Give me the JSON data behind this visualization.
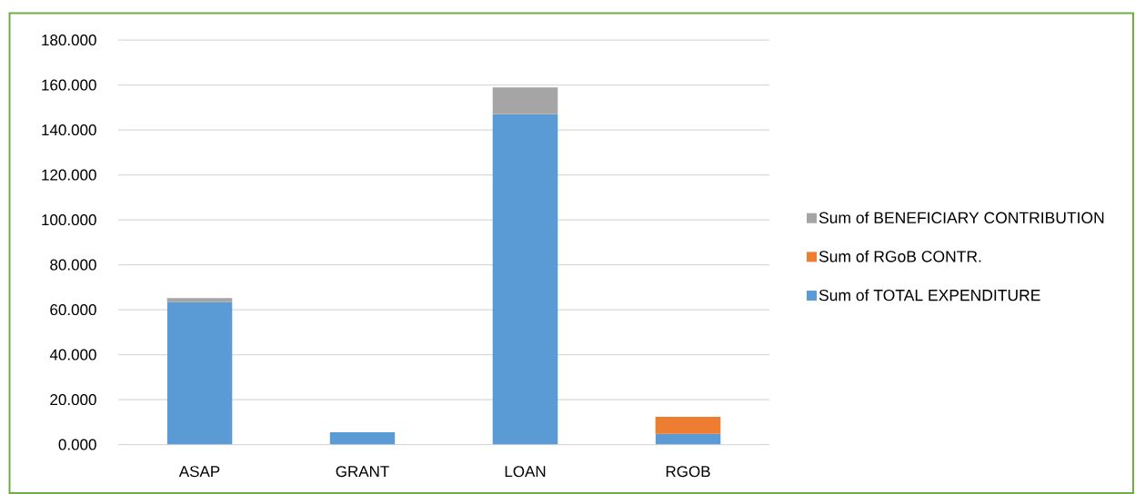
{
  "chart_data": {
    "type": "bar",
    "stacked": true,
    "categories": [
      "ASAP",
      "GRANT",
      "LOAN",
      "RGOB"
    ],
    "series": [
      {
        "name": "Sum of TOTAL EXPENDITURE",
        "color": "#5b9bd5",
        "values": [
          63.4,
          5.5,
          147,
          4.8
        ]
      },
      {
        "name": "Sum of RGoB CONTR.",
        "color": "#ed7d31",
        "values": [
          null,
          null,
          null,
          7.6
        ]
      },
      {
        "name": "Sum of BENEFICIARY CONTRIBUTION",
        "color": "#a5a5a5",
        "values": [
          1.8,
          null,
          11.9,
          null
        ]
      }
    ],
    "ylim": [
      0,
      180
    ],
    "yticks": [
      {
        "value": 0,
        "label": "0.000"
      },
      {
        "value": 20,
        "label": "20.000"
      },
      {
        "value": 40,
        "label": "40.000"
      },
      {
        "value": 60,
        "label": "60.000"
      },
      {
        "value": 80,
        "label": "80.000"
      },
      {
        "value": 100,
        "label": "100.000"
      },
      {
        "value": 120,
        "label": "120.000"
      },
      {
        "value": 140,
        "label": "140.000"
      },
      {
        "value": 160,
        "label": "160.000"
      },
      {
        "value": 180,
        "label": "180.000"
      }
    ],
    "grid": "y",
    "legend": "right"
  }
}
